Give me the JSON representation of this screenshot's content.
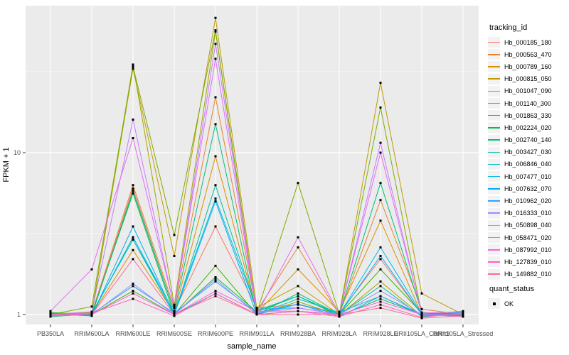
{
  "figure": {
    "background": "#FFFFFF",
    "panel_background": "#EBEBEB",
    "gridline_color": "#FFFFFF",
    "axis_text_color": "#4D4D4D",
    "tick_color": "#333333",
    "point_color": "#000000"
  },
  "axes": {
    "x_title": "sample_name",
    "y_title": "FPKM + 1"
  },
  "legend": {
    "tracking_title": "tracking_id",
    "quant_title": "quant_status",
    "quant_label": "OK"
  },
  "chart_data": {
    "type": "line",
    "title": "",
    "xlabel": "sample_name",
    "ylabel": "FPKM + 1",
    "y_scale": "log10",
    "y_breaks": [
      1,
      10
    ],
    "y_break_labels": [
      "1",
      "10"
    ],
    "y_minor_breaks": [
      3.162,
      31.623
    ],
    "ylim": [
      0.88,
      81
    ],
    "grid": true,
    "legend_position": "right",
    "point_shape": "filled-square",
    "quant_status_all": "OK",
    "categories": [
      "PB350LA",
      "RRIM600LA",
      "RRIM600LE",
      "RRIM600SE",
      "RRIM600PE",
      "RRIM901LA",
      "RRIM928BA",
      "RRIM928LA",
      "RRIM928LE",
      "RRII105LA_Control",
      "RRII105LA_Stressed"
    ],
    "series": [
      {
        "name": "Hb_000185_180",
        "color": "#F8766D",
        "values": [
          1.02,
          1.0,
          6.0,
          1.05,
          3.5,
          1.1,
          1.15,
          1.02,
          2.2,
          1.0,
          1.02
        ]
      },
      {
        "name": "Hb_000563_470",
        "color": "#EA8331",
        "values": [
          1.0,
          1.02,
          6.3,
          1.1,
          22,
          1.05,
          2.6,
          1.0,
          5.1,
          1.08,
          1.0
        ]
      },
      {
        "name": "Hb_000789_160",
        "color": "#D89000",
        "values": [
          0.99,
          1.0,
          2.5,
          1.02,
          9.5,
          1.02,
          1.9,
          1.04,
          3.8,
          1.0,
          0.98
        ]
      },
      {
        "name": "Hb_000815_050",
        "color": "#C09B00",
        "values": [
          1.01,
          1.03,
          33,
          2.3,
          68,
          1.1,
          1.5,
          1.0,
          27,
          1.35,
          1.0
        ]
      },
      {
        "name": "Hb_001047_090",
        "color": "#A3A500",
        "values": [
          0.98,
          1.0,
          35,
          1.15,
          56,
          1.0,
          1.2,
          0.99,
          1.6,
          0.98,
          1.01
        ]
      },
      {
        "name": "Hb_001140_300",
        "color": "#7CAE00",
        "values": [
          1.0,
          1.12,
          34,
          3.1,
          57,
          1.02,
          6.5,
          1.01,
          19,
          1.0,
          1.05
        ]
      },
      {
        "name": "Hb_001863_330",
        "color": "#39B600",
        "values": [
          1.03,
          1.0,
          1.4,
          1.0,
          2.0,
          1.0,
          1.05,
          1.0,
          1.9,
          1.02,
          1.0
        ]
      },
      {
        "name": "Hb_002224_020",
        "color": "#00BB4E",
        "values": [
          0.97,
          1.01,
          5.6,
          1.0,
          1.7,
          1.04,
          1.3,
          0.98,
          1.25,
          1.0,
          0.99
        ]
      },
      {
        "name": "Hb_002740_140",
        "color": "#00BF7D",
        "values": [
          1.0,
          0.99,
          5.8,
          1.05,
          15,
          1.0,
          1.35,
          1.0,
          6.5,
          1.03,
          1.0
        ]
      },
      {
        "name": "Hb_003427_030",
        "color": "#00C1A3",
        "values": [
          1.02,
          1.0,
          3.0,
          0.99,
          6.3,
          1.06,
          1.3,
          1.0,
          1.5,
          0.97,
          1.02
        ]
      },
      {
        "name": "Hb_006846_040",
        "color": "#00BFC4",
        "values": [
          0.99,
          1.02,
          2.9,
          1.0,
          1.35,
          1.0,
          1.25,
          1.03,
          1.3,
          1.0,
          0.98
        ]
      },
      {
        "name": "Hb_007477_010",
        "color": "#00BAE0",
        "values": [
          1.0,
          1.0,
          3.0,
          1.03,
          5.2,
          1.08,
          1.1,
          1.0,
          2.6,
          1.01,
          1.0
        ]
      },
      {
        "name": "Hb_007632_070",
        "color": "#00B0F6",
        "values": [
          1.01,
          0.98,
          3.5,
          1.0,
          5.0,
          1.0,
          1.16,
          1.0,
          2.3,
          1.0,
          1.03
        ]
      },
      {
        "name": "Hb_010962_020",
        "color": "#35A2FF",
        "values": [
          1.0,
          1.01,
          1.5,
          1.02,
          1.6,
          1.03,
          1.16,
          0.97,
          1.3,
          0.99,
          1.0
        ]
      },
      {
        "name": "Hb_016333_010",
        "color": "#9590FF",
        "values": [
          0.98,
          1.0,
          1.55,
          1.0,
          1.65,
          1.0,
          1.05,
          1.0,
          1.4,
          1.0,
          0.97
        ]
      },
      {
        "name": "Hb_050898_040",
        "color": "#C77CFF",
        "values": [
          1.0,
          1.04,
          16,
          1.1,
          47,
          1.02,
          1.1,
          1.0,
          11.5,
          1.0,
          1.0
        ]
      },
      {
        "name": "Hb_058471_020",
        "color": "#E76BF3",
        "values": [
          1.05,
          1.9,
          12.3,
          1.12,
          38,
          1.0,
          3.0,
          1.01,
          10,
          1.02,
          1.04
        ]
      },
      {
        "name": "Hb_087992_010",
        "color": "#FA62DB",
        "values": [
          1.0,
          1.0,
          1.35,
          1.0,
          1.4,
          1.05,
          1.05,
          1.0,
          1.2,
          1.0,
          1.0
        ]
      },
      {
        "name": "Hb_127839_010",
        "color": "#FF62BC",
        "values": [
          0.99,
          1.02,
          1.25,
          0.98,
          1.35,
          1.0,
          1.05,
          0.97,
          1.15,
          0.96,
          1.02
        ]
      },
      {
        "name": "Hb_149882_010",
        "color": "#FF6A98",
        "values": [
          1.0,
          1.0,
          2.2,
          1.0,
          1.3,
          1.0,
          1.0,
          1.0,
          1.1,
          0.95,
          0.98
        ]
      }
    ]
  }
}
